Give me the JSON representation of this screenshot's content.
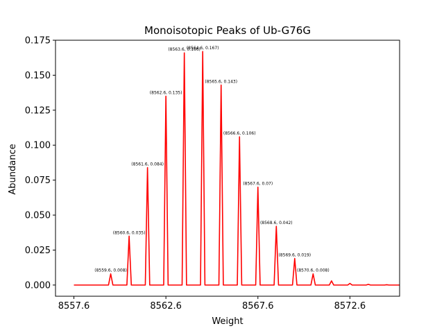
{
  "chart_data": {
    "type": "line",
    "title": "Monoisotopic Peaks of Ub-G76G",
    "xlabel": "Weight",
    "ylabel": "Abundance",
    "xlim": [
      8556.6,
      8575.3
    ],
    "ylim": [
      -0.008,
      0.175
    ],
    "x_ticks": [
      8557.6,
      8562.6,
      8567.6,
      8572.6
    ],
    "x_tick_labels": [
      "8557.6",
      "8562.6",
      "8567.6",
      "8572.6"
    ],
    "y_ticks": [
      0.0,
      0.025,
      0.05,
      0.075,
      0.1,
      0.125,
      0.15,
      0.175
    ],
    "y_tick_labels": [
      "0.000",
      "0.025",
      "0.050",
      "0.075",
      "0.100",
      "0.125",
      "0.150",
      "0.175"
    ],
    "line_color": "#ff0000",
    "grid": false,
    "baseline_range": [
      8557.6,
      8575.3
    ],
    "peak_half_width": 0.12,
    "series": [
      {
        "x": [
          8559.6,
          8560.6,
          8561.6,
          8562.6,
          8563.6,
          8564.6,
          8565.6,
          8566.6,
          8567.6,
          8568.6,
          8569.6,
          8570.6,
          8571.6,
          8572.6,
          8573.6,
          8574.6
        ],
        "values": [
          0.008,
          0.035,
          0.084,
          0.135,
          0.166,
          0.167,
          0.143,
          0.106,
          0.07,
          0.042,
          0.019,
          0.008,
          0.003,
          0.0012,
          0.0005,
          0.0002
        ]
      }
    ],
    "annotations": [
      {
        "x": 8559.6,
        "y": 0.008,
        "text": "(8559.6, 0.008)"
      },
      {
        "x": 8560.6,
        "y": 0.035,
        "text": "(8560.6, 0.035)"
      },
      {
        "x": 8561.6,
        "y": 0.084,
        "text": "(8561.6, 0.084)"
      },
      {
        "x": 8562.6,
        "y": 0.135,
        "text": "(8562.6, 0.135)"
      },
      {
        "x": 8563.6,
        "y": 0.166,
        "text": "(8563.6, 0.166)"
      },
      {
        "x": 8564.6,
        "y": 0.167,
        "text": "(8564.6, 0.167)"
      },
      {
        "x": 8565.6,
        "y": 0.143,
        "text": "(8565.6, 0.143)"
      },
      {
        "x": 8566.6,
        "y": 0.106,
        "text": "(8566.6, 0.106)"
      },
      {
        "x": 8567.6,
        "y": 0.07,
        "text": "(8567.6, 0.07)"
      },
      {
        "x": 8568.6,
        "y": 0.042,
        "text": "(8568.6, 0.042)"
      },
      {
        "x": 8569.6,
        "y": 0.019,
        "text": "(8569.6, 0.019)"
      },
      {
        "x": 8570.6,
        "y": 0.008,
        "text": "(8570.6, 0.008)"
      }
    ]
  }
}
